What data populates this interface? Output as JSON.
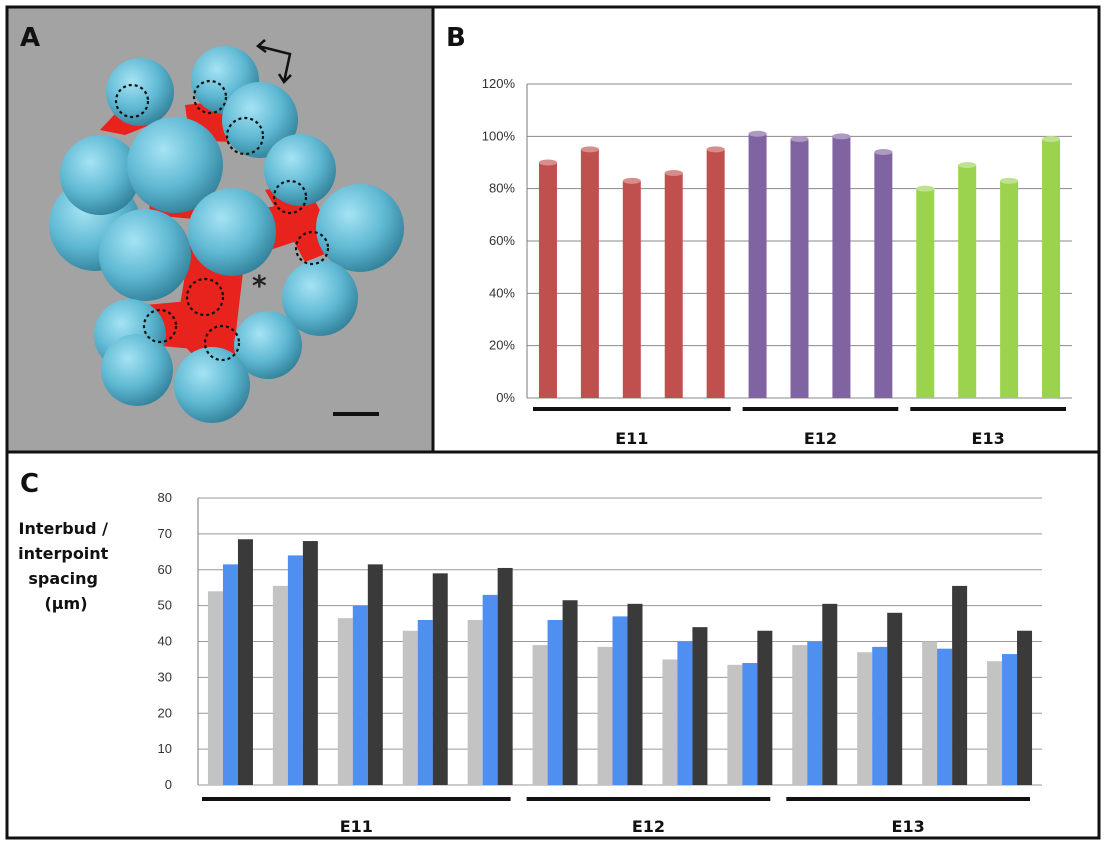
{
  "panels": {
    "a": {
      "letter": "A",
      "asterisk": "*"
    },
    "b": {
      "letter": "B"
    },
    "c": {
      "letter": "C"
    }
  },
  "colors": {
    "bud": "#5fb9d3",
    "duct": "#e8221c",
    "panel_a_background": "#a3a3a3",
    "e11_bar": "#c0504d",
    "e12_bar": "#8064a2",
    "e13_bar": "#9bd34f",
    "series1": "#c3c3c3",
    "series2": "#4f8ff0",
    "series3": "#3a3a3a"
  },
  "icons": [
    "double-arrow-icon",
    "scale-bar"
  ],
  "chart_data": [
    {
      "panel": "B",
      "type": "bar",
      "ylim": [
        0,
        1.2
      ],
      "yticks": [
        "0%",
        "20%",
        "40%",
        "60%",
        "80%",
        "100%",
        "120%"
      ],
      "grid": true,
      "groups": [
        {
          "label": "E11",
          "values": [
            0.9,
            0.95,
            0.83,
            0.86,
            0.95
          ]
        },
        {
          "label": "E12",
          "values": [
            1.01,
            0.99,
            1.0,
            0.94
          ]
        },
        {
          "label": "E13",
          "values": [
            0.8,
            0.89,
            0.83,
            0.99
          ]
        }
      ]
    },
    {
      "panel": "C",
      "type": "bar",
      "ylabel": [
        "Interbud /",
        "interpoint",
        "spacing",
        "(µm)"
      ],
      "ylim": [
        0,
        80
      ],
      "yticks": [
        "0",
        "10",
        "20",
        "30",
        "40",
        "50",
        "60",
        "70",
        "80"
      ],
      "grid": true,
      "groups": [
        {
          "label": "E11",
          "clusters": [
            [
              54,
              61.5,
              68.5
            ],
            [
              55.5,
              64,
              68
            ],
            [
              46.5,
              50,
              61.5
            ],
            [
              43,
              46,
              59
            ],
            [
              46,
              53,
              60.5
            ]
          ]
        },
        {
          "label": "E12",
          "clusters": [
            [
              39,
              46,
              51.5
            ],
            [
              38.5,
              47,
              50.5
            ],
            [
              35,
              40,
              44
            ],
            [
              33.5,
              34,
              43
            ]
          ]
        },
        {
          "label": "E13",
          "clusters": [
            [
              39,
              40,
              50.5
            ],
            [
              37,
              38.5,
              48
            ],
            [
              40,
              38,
              55.5
            ],
            [
              34.5,
              36.5,
              43
            ]
          ]
        }
      ]
    }
  ]
}
